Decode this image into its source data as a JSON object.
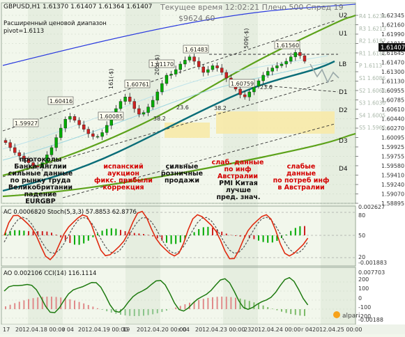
{
  "header": {
    "symbol": "GBPUSD,H1  1.61370 1.61407 1.61364 1.61407",
    "server_time": "Текущее время 12:02:21 Плечо 500 Спред 19",
    "balance": "$9624.60",
    "range_note_1": "Расширенный ценовой диапазон",
    "range_note_2": "pivot=1.6113"
  },
  "price_axis": {
    "labels": [
      "1.62345",
      "1.62160",
      "1.61990",
      "1.61815",
      "1.61645",
      "1.61470",
      "1.61300",
      "1.61130",
      "1.60955",
      "1.60785",
      "1.60610",
      "1.60440",
      "1.60270",
      "1.60095",
      "1.59925",
      "1.59755",
      "1.59580",
      "1.59410",
      "1.59240",
      "1.59070",
      "1.58895"
    ],
    "ghost_labels": [
      "R4 1.6234",
      "R3 1.6213",
      "R2 1.6187",
      "R1 1.6161",
      "P 1.6113",
      "S1 1.6086",
      "S2 1.6060",
      "S3 1.6030",
      "S4 1.6005",
      "S5 1.5960"
    ],
    "current_price": "1.61407"
  },
  "levels": [
    "U2",
    "U1",
    "LB",
    "D1",
    "D2",
    "D3",
    "D4"
  ],
  "price_tags": [
    "1.61483",
    "1.61560",
    "1.61170",
    "1.60761",
    "1.60759",
    "1.60416",
    "1.59927",
    "1.60085"
  ],
  "fib_labels": [
    "38.2",
    "23.6",
    "38.2",
    "23.6"
  ],
  "channel_labels": [
    "161(-$)",
    "205(-$)",
    "509(-$)"
  ],
  "annotations": [
    {
      "text": "протоколы\nБанка Англии\nсильные данные\nпо рынку труда\nВеликобритании\nпадение\nEURGBP",
      "color": "#111111"
    },
    {
      "text": "испанский\nаукцион\nфикс. прибыли\nкоррекция",
      "color": "#d40000"
    },
    {
      "text": "сильные\nрозничные\nпродажи",
      "color": "#111111"
    },
    {
      "text": "слаб. данные\nпо инф\nАвстралии",
      "color": "#d40000"
    },
    {
      "text": "PMI Китая\nлучше\nпред. знач.",
      "color": "#111111"
    },
    {
      "text": "слабые\nданные\nпо потреб инф\nв Австралии",
      "color": "#d40000"
    }
  ],
  "stoch": {
    "header": "AC 0.0006820  Stoch(5,3,3) 57.8853 62.8776",
    "axis_labels": [
      "0.002627",
      "80",
      "50",
      "20",
      "-0.001883"
    ]
  },
  "cci": {
    "header": "AO 0.002106  CCI(14) 116.1114",
    "axis_labels": [
      "0.007703",
      "200",
      "100",
      "0",
      "-100",
      "-200",
      "-0.00188"
    ]
  },
  "time_axis": {
    "labels": [
      "17",
      "2012.04.18 00:00",
      "r 04",
      "2012.04.19 00:00",
      "19",
      "2012.04.20 00:00",
      "r 04",
      "2012.04.23 00:00",
      "23",
      "2012.04.24 00:00",
      "r 04",
      "2012.04.25 00:00"
    ]
  },
  "logo": "alpari",
  "colors": {
    "background": "#f2f7ec",
    "candle_up": "#00aa00",
    "candle_down": "#cc2222",
    "ema_teal": "#0a6d78",
    "ema_blue": "#2a3adf",
    "ema_green": "#5ca21a",
    "zone": "#f7e9a9",
    "stoch_main": "#e02a10",
    "stoch_signal": "#555555",
    "cci_line": "#1e7a10"
  },
  "chart_data": {
    "type": "candlestick",
    "title": "GBPUSD,H1",
    "ylim": [
      1.5885,
      1.6245
    ],
    "closes": [
      1.5994,
      1.5985,
      1.5976,
      1.597,
      1.5965,
      1.5958,
      1.5952,
      1.595,
      1.5958,
      1.5972,
      1.5985,
      1.6003,
      1.602,
      1.6036,
      1.6041,
      1.6034,
      1.6026,
      1.6018,
      1.601,
      1.6005,
      1.6005,
      1.6012,
      1.6025,
      1.604,
      1.6055,
      1.6068,
      1.6076,
      1.6068,
      1.6055,
      1.6045,
      1.6048,
      1.6058,
      1.607,
      1.6085,
      1.61,
      1.6115,
      1.6117,
      1.6125,
      1.6135,
      1.6142,
      1.6148,
      1.614,
      1.613,
      1.612,
      1.6125,
      1.6132,
      1.6128,
      1.612,
      1.611,
      1.61,
      1.609,
      1.608,
      1.6076,
      1.6085,
      1.6095,
      1.6105,
      1.6115,
      1.6122,
      1.6128,
      1.6132,
      1.6135,
      1.614,
      1.6148,
      1.6156,
      1.615,
      1.614
    ]
  }
}
